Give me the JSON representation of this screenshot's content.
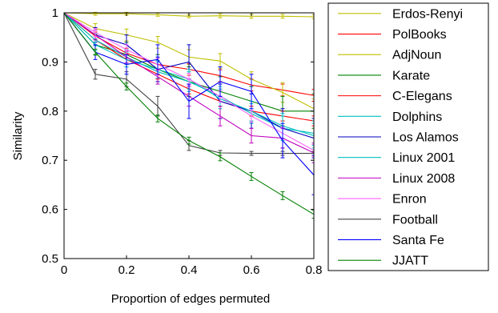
{
  "chart_data": {
    "type": "line",
    "xlabel": "Proportion of edges permuted",
    "ylabel": "Similarity",
    "xlim": [
      0,
      0.8
    ],
    "ylim": [
      0.5,
      1
    ],
    "x_ticks": [
      "0",
      "0.2",
      "0.4",
      "0.6",
      "0.8"
    ],
    "y_ticks": [
      "0.5",
      "0.6",
      "0.7",
      "0.8",
      "0.9",
      "1"
    ],
    "x": [
      0,
      0.1,
      0.2,
      0.3,
      0.4,
      0.5,
      0.6,
      0.7,
      0.8
    ],
    "grid": false,
    "legend_position": "right, outside plot",
    "series": [
      {
        "name": "Erdos-Renyi",
        "color": "#bfbf00",
        "values": [
          1,
          0.998,
          0.998,
          0.996,
          0.993,
          0.994,
          0.993,
          0.993,
          0.992
        ],
        "errors": [
          0,
          0.003,
          0.003,
          0.003,
          0.003,
          0.004,
          0.004,
          0.004,
          0.004
        ]
      },
      {
        "name": "PolBooks",
        "color": "#ff0000",
        "values": [
          1,
          0.953,
          0.918,
          0.895,
          0.885,
          0.872,
          0.853,
          0.843,
          0.832
        ],
        "errors": [
          0,
          0.008,
          0.01,
          0.012,
          0.012,
          0.012,
          0.012,
          0.012,
          0.012
        ]
      },
      {
        "name": "AdjNoun",
        "color": "#bfbf00",
        "values": [
          1,
          0.968,
          0.955,
          0.94,
          0.91,
          0.902,
          0.865,
          0.838,
          0.805
        ],
        "errors": [
          0,
          0.01,
          0.012,
          0.012,
          0.015,
          0.015,
          0.015,
          0.02,
          0.02
        ]
      },
      {
        "name": "Karate",
        "color": "#008000",
        "values": [
          1,
          0.935,
          0.915,
          0.885,
          0.86,
          0.84,
          0.82,
          0.8,
          0.8
        ],
        "errors": [
          0,
          0.02,
          0.025,
          0.03,
          0.03,
          0.03,
          0.03,
          0.03,
          0.035
        ]
      },
      {
        "name": "C-Elegans",
        "color": "#ff0000",
        "values": [
          1,
          0.945,
          0.905,
          0.875,
          0.845,
          0.82,
          0.8,
          0.79,
          0.78
        ],
        "errors": [
          0,
          0.01,
          0.01,
          0.01,
          0.01,
          0.01,
          0.01,
          0.01,
          0.01
        ]
      },
      {
        "name": "Dolphins",
        "color": "#00bfbf",
        "values": [
          1,
          0.945,
          0.91,
          0.88,
          0.86,
          0.83,
          0.795,
          0.765,
          0.755
        ],
        "errors": [
          0,
          0.012,
          0.015,
          0.02,
          0.02,
          0.02,
          0.02,
          0.025,
          0.025
        ]
      },
      {
        "name": "Los Alamos",
        "color": "#0000bf",
        "values": [
          1,
          0.955,
          0.935,
          0.885,
          0.9,
          0.82,
          0.8,
          0.765,
          0.745
        ],
        "errors": [
          0,
          0.015,
          0.02,
          0.025,
          0.035,
          0.035,
          0.035,
          0.04,
          0.04
        ]
      },
      {
        "name": "Linux 2001",
        "color": "#00bfbf",
        "values": [
          1,
          0.935,
          0.905,
          0.885,
          0.865,
          0.825,
          0.8,
          0.77,
          0.75
        ],
        "errors": [
          0,
          0.012,
          0.015,
          0.018,
          0.02,
          0.02,
          0.02,
          0.025,
          0.025
        ]
      },
      {
        "name": "Linux 2008",
        "color": "#bf00bf",
        "values": [
          1,
          0.955,
          0.91,
          0.87,
          0.83,
          0.79,
          0.75,
          0.745,
          0.715
        ],
        "errors": [
          0,
          0.01,
          0.012,
          0.015,
          0.02,
          0.02,
          0.015,
          0.02,
          0.02
        ]
      },
      {
        "name": "Enron",
        "color": "#ff60ff",
        "values": [
          1,
          0.96,
          0.925,
          0.895,
          0.865,
          0.83,
          0.79,
          0.755,
          0.72
        ],
        "errors": [
          0,
          0.008,
          0.01,
          0.012,
          0.012,
          0.012,
          0.012,
          0.012,
          0.012
        ]
      },
      {
        "name": "Football",
        "color": "#404040",
        "values": [
          1,
          0.875,
          0.865,
          0.81,
          0.73,
          0.715,
          0.714,
          0.714,
          0.714
        ],
        "errors": [
          0,
          0.01,
          0.015,
          0.02,
          0.01,
          0.005,
          0.004,
          0.004,
          0.004
        ]
      },
      {
        "name": "Santa Fe",
        "color": "#0000ff",
        "values": [
          1,
          0.92,
          0.895,
          0.905,
          0.82,
          0.86,
          0.84,
          0.74,
          0.67
        ],
        "errors": [
          0,
          0.015,
          0.02,
          0.03,
          0.035,
          0.03,
          0.035,
          0.035,
          0.04
        ]
      },
      {
        "name": "JJATT",
        "color": "#008000",
        "values": [
          1,
          0.92,
          0.85,
          0.785,
          0.74,
          0.707,
          0.667,
          0.628,
          0.59
        ],
        "errors": [
          0,
          0.006,
          0.007,
          0.007,
          0.007,
          0.008,
          0.008,
          0.008,
          0.008
        ]
      }
    ]
  }
}
